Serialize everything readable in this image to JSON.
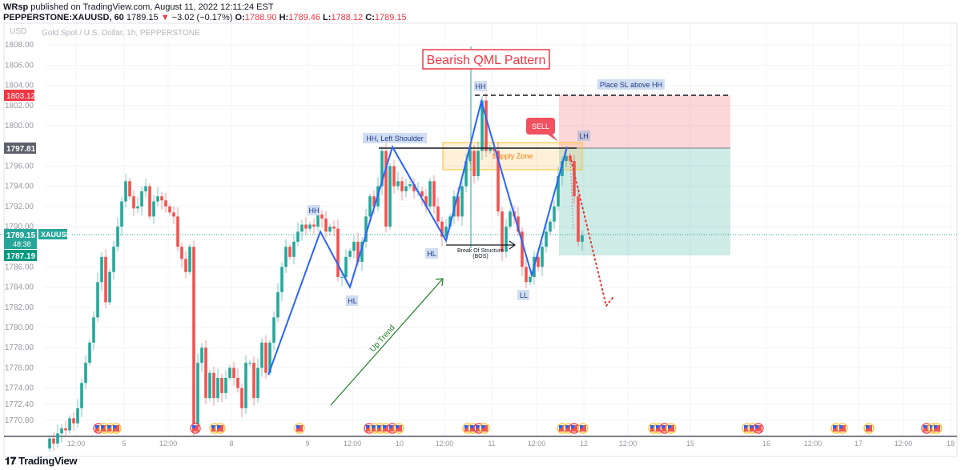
{
  "header": {
    "publisher": "WRsp",
    "published_text": "published on TradingView.com, August 11, 2022 12:11:24 EST",
    "symbol": "PEPPERSTONE:XAUUSD, 60",
    "last": "1789.15",
    "change": "−3.02 (−0.17%)",
    "o_label": "O:",
    "o": "1788.90",
    "h_label": "H:",
    "h": "1789.46",
    "l_label": "L:",
    "l": "1788.12",
    "c_label": "C:",
    "c": "1789.15",
    "change_direction_icon": "triangle-down-icon"
  },
  "chart_data": {
    "type": "candlestick",
    "title": "Gold Spot / U.S. Dollar, 1h, PEPPERSTONE",
    "currency": "USD",
    "interval": "1h",
    "ylim": [
      1769,
      1810
    ],
    "grid": true,
    "first_open": 1768.0,
    "closes": [
      1769.0,
      1768.5,
      1769.5,
      1770.0,
      1769.8,
      1771.0,
      1770.5,
      1772.0,
      1774.5,
      1776.5,
      1778.5,
      1781.0,
      1784.5,
      1787.0,
      1782.5,
      1785.5,
      1788.0,
      1790.0,
      1792.5,
      1794.5,
      1793.0,
      1791.8,
      1792.0,
      1793.5,
      1794.0,
      1791.0,
      1792.5,
      1793.0,
      1792.6,
      1792.0,
      1791.4,
      1791.0,
      1788.0,
      1786.8,
      1785.5,
      1788.0,
      1770.0,
      1776.5,
      1778.0,
      1773.0,
      1775.5,
      1773.0,
      1775.0,
      1773.5,
      1775.0,
      1776.0,
      1775.0,
      1774.0,
      1772.0,
      1776.5,
      1776.5,
      1773.0,
      1776.0,
      1778.5,
      1775.5,
      1778.5,
      1781.0,
      1783.5,
      1786.0,
      1788.0,
      1787.0,
      1788.5,
      1789.5,
      1790.2,
      1789.8,
      1790.2,
      1790.0,
      1791.2,
      1790.8,
      1789.5,
      1790.0,
      1789.8,
      1785.0,
      1785.0,
      1787.0,
      1787.6,
      1788.5,
      1786.5,
      1788.5,
      1791.0,
      1793.0,
      1792.0,
      1794.0,
      1797.5,
      1790.0,
      1796.0,
      1794.0,
      1794.5,
      1793.5,
      1794.0,
      1794.2,
      1793.5,
      1793.5,
      1793.0,
      1792.0,
      1794.5,
      1792.0,
      1790.5,
      1789.0,
      1790.0,
      1791.0,
      1793.0,
      1791.0,
      1794.0,
      1796.5,
      1797.5,
      1795.0,
      1797.5,
      1802.5,
      1797.5,
      1797.8,
      1797.5,
      1791.5,
      1787.5,
      1790.0,
      1791.5,
      1791.0,
      1789.5,
      1786.0,
      1784.5,
      1785.0,
      1787.0,
      1786.0,
      1788.0,
      1789.5,
      1790.5,
      1792.0,
      1795.0,
      1796.5,
      1797.0,
      1796.5,
      1793.0,
      1788.5,
      1789.15
    ],
    "y_ticks": [
      "1808.00",
      "1806.00",
      "1804.00",
      "1802.00",
      "1800.00",
      "1796.00",
      "1794.00",
      "1792.00",
      "1790.00",
      "1786.00",
      "1784.00",
      "1782.00",
      "1780.00",
      "1778.00",
      "1776.00",
      "1774.00",
      "1772.40",
      "1770.80"
    ],
    "x_ticks": [
      "12:00",
      "5",
      "12:00",
      "8",
      "9",
      "12:00",
      "10",
      "12:00",
      "11",
      "12:00",
      "12",
      "12:00",
      "15",
      "16",
      "12:00",
      "17",
      "12:00",
      "18"
    ],
    "colors": {
      "up": "#26a69a",
      "down": "#ef5350",
      "zigzag": "#2962ff"
    }
  },
  "price_labels": {
    "stop": "1803.12",
    "entry": "1797.81",
    "last": "1789.15",
    "countdown": "48:38",
    "symbol_tag": "XAUUSD",
    "target": "1787.19"
  },
  "annotations": {
    "title": "Bearish QML Pattern",
    "place_sl": "Place SL above HH",
    "hh_top": "HH",
    "hh_left_shoulder": "HH, Left Shoulder",
    "hh_first": "HH",
    "hl_first": "HL",
    "hl_second": "HL",
    "ll": "LL",
    "lh": "LH",
    "sell": "SELL",
    "supply_zone": "Supply Zone",
    "bos_line1": "Break Of Structure",
    "bos_line2": "(BOS)",
    "up_trend": "Up Trend",
    "zigzag_points": [
      [
        54.6,
        1775.3
      ],
      [
        67.6,
        1789.5
      ],
      [
        75,
        1784.0
      ],
      [
        85.6,
        1797.9
      ],
      [
        99,
        1788.6
      ],
      [
        107.8,
        1802.4
      ],
      [
        120.4,
        1785.2
      ],
      [
        129.2,
        1797.9
      ]
    ]
  },
  "footer": {
    "brand": "TradingView"
  }
}
